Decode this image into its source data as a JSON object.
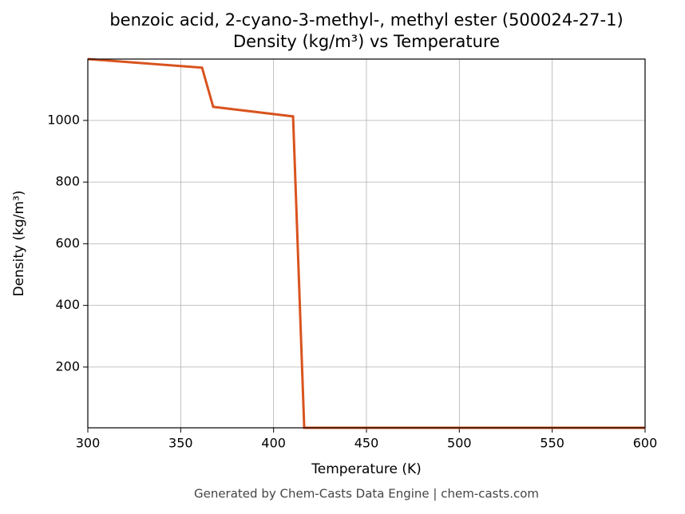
{
  "chart_data": {
    "type": "line",
    "title": "benzoic acid, 2-cyano-3-methyl-, methyl ester (500024-27-1)",
    "subtitle": "Density (kg/m³) vs Temperature",
    "x_label": "Temperature (K)",
    "y_label": "Density (kg/m³)",
    "footer": "Generated by Chem-Casts Data Engine | chem-casts.com",
    "x": [
      300,
      361.5,
      367.5,
      410.5,
      416.5,
      600
    ],
    "series": [
      {
        "name": "Density",
        "color": "#d9531e",
        "values": [
          1199,
          1171,
          1044,
          1013,
          3,
          3
        ]
      }
    ],
    "xlim": [
      300,
      600
    ],
    "ylim": [
      3,
      1199
    ],
    "xticks": [
      300,
      350,
      400,
      450,
      500,
      550,
      600
    ],
    "yticks": [
      200,
      400,
      600,
      800,
      1000
    ],
    "grid": true
  }
}
